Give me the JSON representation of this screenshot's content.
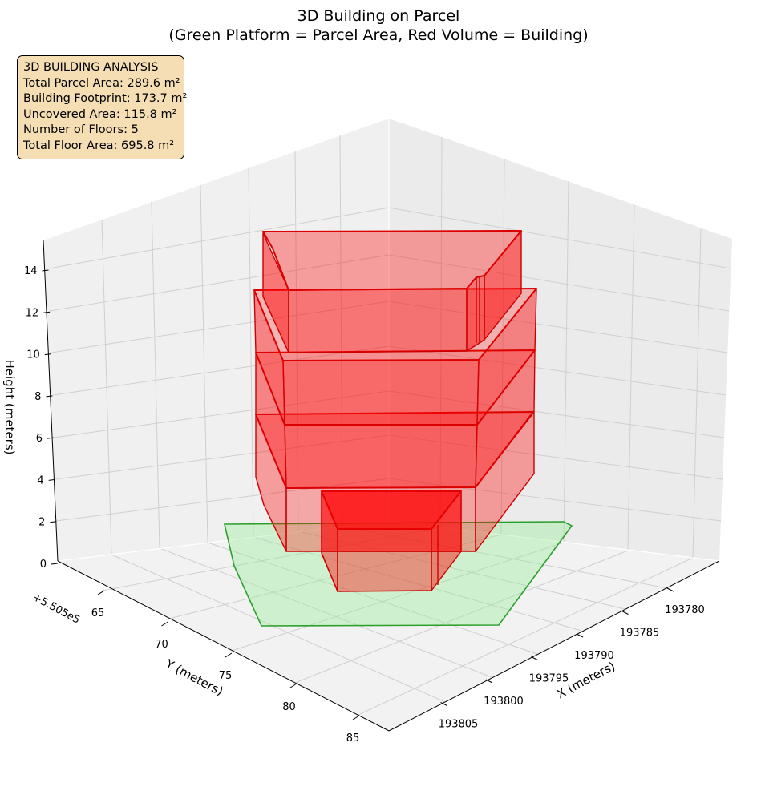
{
  "chart_data": {
    "type": "3d-polygon",
    "title": "3D Building on Parcel",
    "subtitle": "(Green Platform = Parcel Area, Red Volume = Building)",
    "xlabel": "X (meters)",
    "ylabel": "Y (meters)",
    "zlabel": "Height (meters)",
    "x_ticks": [
      "193780",
      "193785",
      "193790",
      "193795",
      "193800",
      "193805"
    ],
    "y_ticks": [
      "65",
      "70",
      "75",
      "80",
      "85"
    ],
    "z_ticks": [
      "0",
      "2",
      "4",
      "6",
      "8",
      "10",
      "12",
      "14"
    ],
    "y_offset": "+5.505e5",
    "grid": true,
    "series": [
      {
        "name": "Parcel Area",
        "color": "#90ee90",
        "edge_color": "#2ca02c"
      },
      {
        "name": "Building",
        "color": "#ff0000",
        "edge_color": "#cc0000"
      }
    ],
    "stats": {
      "heading": "3D BUILDING ANALYSIS",
      "lines": [
        "Total Parcel Area: 289.6 m²",
        "Building Footprint: 173.7 m²",
        "Uncovered Area: 115.8 m²",
        "Number of Floors: 5",
        "Total Floor Area: 695.8 m²"
      ]
    }
  }
}
